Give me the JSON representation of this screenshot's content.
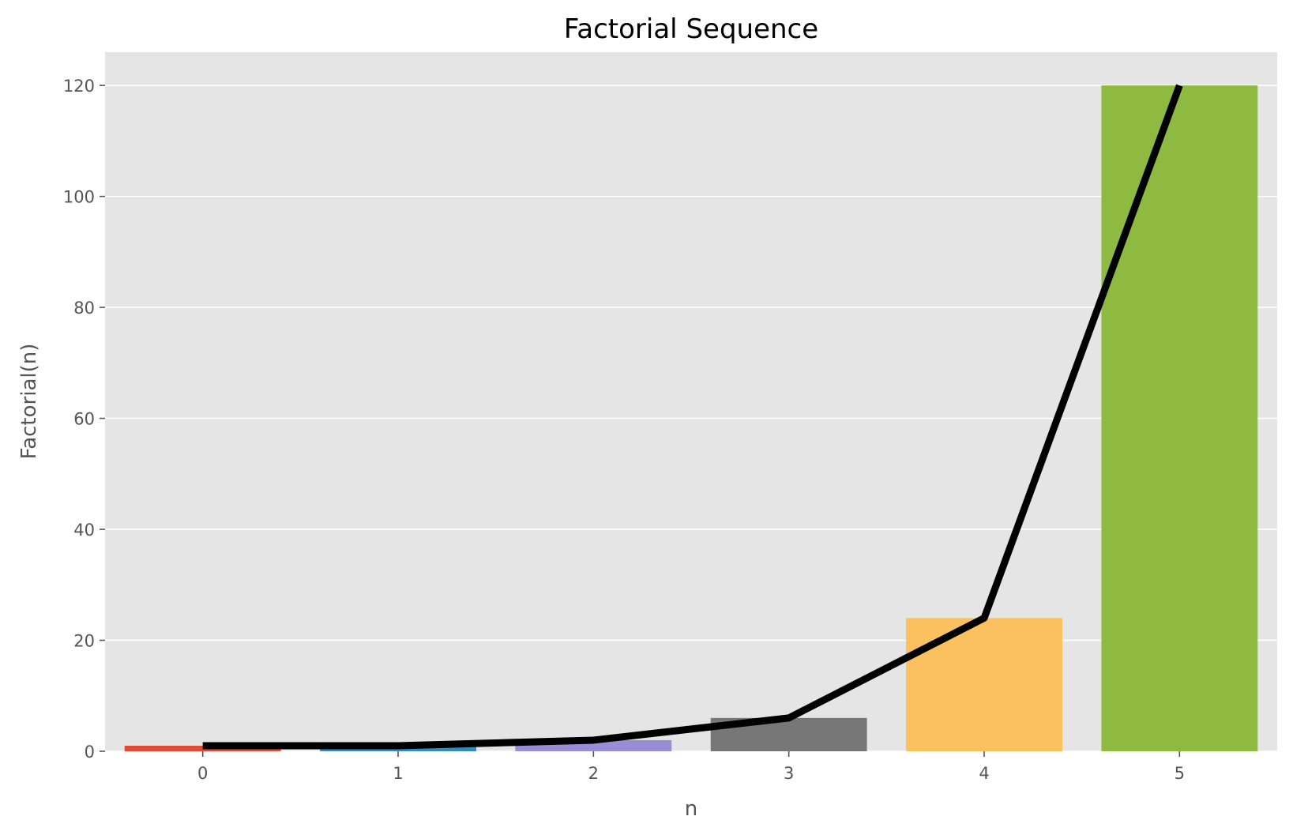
{
  "chart_data": {
    "type": "bar",
    "title": "Factorial Sequence",
    "xlabel": "n",
    "ylabel": "Factorial(n)",
    "categories": [
      "0",
      "1",
      "2",
      "3",
      "4",
      "5"
    ],
    "values": [
      1,
      1,
      2,
      6,
      24,
      120
    ],
    "bar_colors": [
      "#E24A33",
      "#348ABD",
      "#988ED5",
      "#777777",
      "#FBC15E",
      "#8EBA42"
    ],
    "line": {
      "values": [
        1,
        1,
        2,
        6,
        24,
        120
      ],
      "color": "#000000"
    },
    "ylim": [
      0,
      126
    ],
    "yticks": [
      0,
      20,
      40,
      60,
      80,
      100,
      120
    ],
    "grid": true,
    "background_color": "#E5E5E5",
    "grid_color": "#FFFFFF"
  }
}
